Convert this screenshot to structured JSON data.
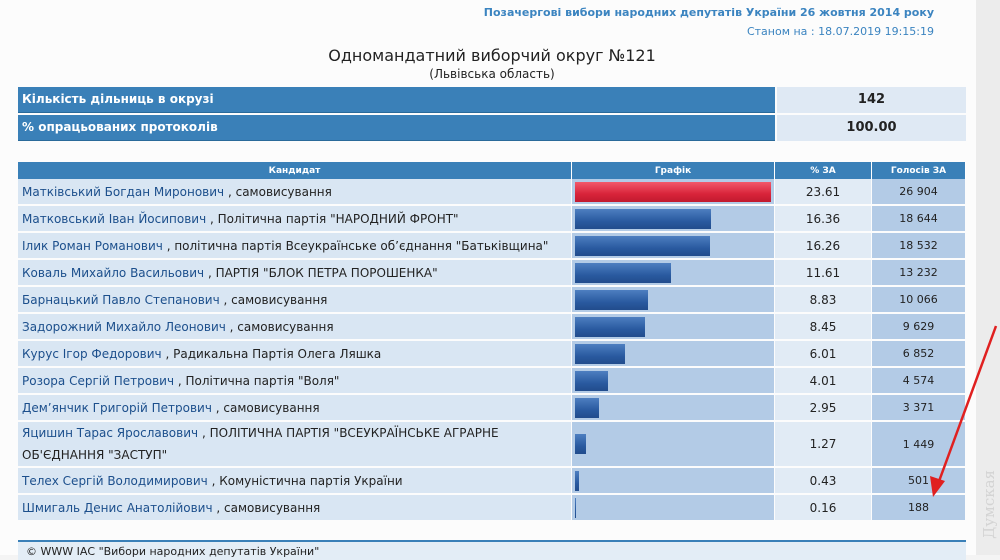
{
  "header": {
    "election": "Позачергові вибори народних депутатів України 26 жовтня 2014 року",
    "as_of": "Станом на : 18.07.2019 19:15:19",
    "title": "Одномандатний виборчий округ №121",
    "region": "(Львівська область)"
  },
  "summary": [
    {
      "label": "Кількість дільниць в окрузі",
      "value": "142"
    },
    {
      "label": "% опрацьованих протоколів",
      "value": "100.00"
    }
  ],
  "columns": {
    "candidate": "Кандидат",
    "chart": "Графік",
    "pct": "% ЗА",
    "votes": "Голосів ЗА"
  },
  "rows": [
    {
      "name": "Матківський Богдан Миронович",
      "party": ", самовисування",
      "pct": "23.61",
      "votes": "26 904"
    },
    {
      "name": "Матковський Іван Йосипович",
      "party": ", Політична партія \"НАРОДНИЙ ФРОНТ\"",
      "pct": "16.36",
      "votes": "18 644"
    },
    {
      "name": "Ілик Роман Романович",
      "party": ", політична партія Всеукраїнське об’єднання \"Батьківщина\"",
      "pct": "16.26",
      "votes": "18 532"
    },
    {
      "name": "Коваль Михайло Васильович",
      "party": ", ПАРТІЯ \"БЛОК ПЕТРА ПОРОШЕНКА\"",
      "pct": "11.61",
      "votes": "13 232"
    },
    {
      "name": "Барнацький Павло Степанович",
      "party": ", самовисування",
      "pct": "8.83",
      "votes": "10 066"
    },
    {
      "name": "Задорожний Михайло Леонович",
      "party": ", самовисування",
      "pct": "8.45",
      "votes": "9 629"
    },
    {
      "name": "Курус Ігор Федорович",
      "party": ", Радикальна Партія Олега Ляшка",
      "pct": "6.01",
      "votes": "6 852"
    },
    {
      "name": "Розора Сергій Петрович",
      "party": ", Політична партія \"Воля\"",
      "pct": "4.01",
      "votes": "4 574"
    },
    {
      "name": "Дем’янчик Григорій Петрович",
      "party": ", самовисування",
      "pct": "2.95",
      "votes": "3 371"
    },
    {
      "name": "Яцишин Тарас Ярославович",
      "party": ", ПОЛІТИЧНА ПАРТІЯ \"ВСЕУКРАЇНСЬКЕ АГРАРНЕ ОБ'ЄДНАННЯ \"ЗАСТУП\"",
      "pct": "1.27",
      "votes": "1 449"
    },
    {
      "name": "Телех Сергій Володимирович",
      "party": ", Комуністична партія України",
      "pct": "0.43",
      "votes": "501"
    },
    {
      "name": "Шмигаль Денис Анатолійович",
      "party": ", самовисування",
      "pct": "0.16",
      "votes": "188"
    }
  ],
  "footer": "© WWW ІАС \"Вибори народних депутатів України\"",
  "watermark": "Думская",
  "colors": {
    "accent": "#3a80b8",
    "winner_bar": "#d8243a",
    "bar": "#2a5aa0",
    "arrow": "#e02020"
  }
}
